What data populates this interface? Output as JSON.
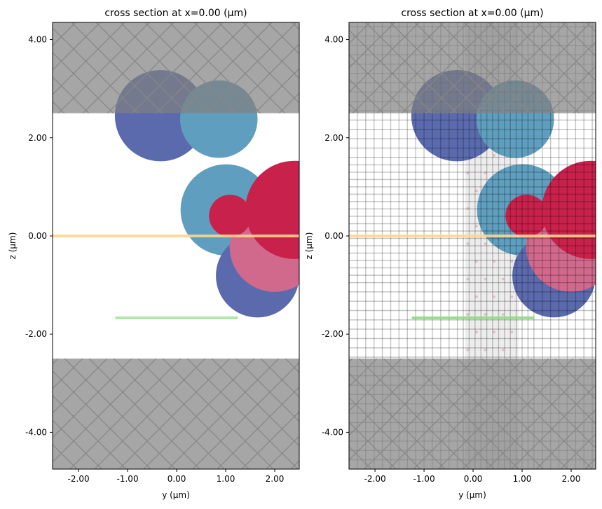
{
  "chart_data": [
    {
      "type": "structure-cross-section",
      "title": "cross section at x=0.00 (μm)",
      "xlabel": "y (μm)",
      "ylabel": "z (μm)",
      "xlim": [
        -2.53,
        2.5
      ],
      "ylim": [
        -4.75,
        4.35
      ],
      "xticks": [
        -2,
        -1,
        0,
        1,
        2
      ],
      "xtick_labels": [
        "-2.00",
        "-1.00",
        "0.00",
        "1.00",
        "2.00"
      ],
      "yticks": [
        4,
        2,
        0,
        -2,
        -4
      ],
      "ytick_labels": [
        "4.00",
        "2.00",
        "0.00",
        "-2.00",
        "-4.00"
      ],
      "show_grid_mesh": false,
      "slabs": [
        {
          "name": "top-cladding",
          "z_min": 2.5,
          "z_max": 4.35,
          "color": "#a6a6a6",
          "hatch": "x"
        },
        {
          "name": "bottom-substrate",
          "z_min": -4.75,
          "z_max": -2.5,
          "color": "#a6a6a6",
          "hatch": "x"
        }
      ],
      "circles": [
        {
          "y": -0.33,
          "z": 2.45,
          "r": 0.93,
          "color": "#5a6aad"
        },
        {
          "y": 0.86,
          "z": 2.38,
          "r": 0.79,
          "color": "#5f9ebe"
        },
        {
          "y": 1.01,
          "z": 0.53,
          "r": 0.93,
          "color": "#5f9ebe"
        },
        {
          "y": 1.65,
          "z": -0.81,
          "r": 0.85,
          "color": "#5a6aad"
        },
        {
          "y": 2.0,
          "z": -0.22,
          "r": 0.92,
          "color": "#d1698d"
        },
        {
          "y": 2.4,
          "z": 0.53,
          "r": 1.0,
          "color": "#c8214b"
        },
        {
          "y": 1.09,
          "z": 0.41,
          "r": 0.43,
          "color": "#c8214b"
        }
      ],
      "lines": [
        {
          "name": "source",
          "z": 0,
          "y_min": -2.53,
          "y_max": 2.5,
          "color": "#ffd58a"
        },
        {
          "name": "monitor",
          "z": -1.67,
          "y_min": -1.25,
          "y_max": 1.25,
          "color": "#a8e6a0"
        }
      ]
    },
    {
      "type": "structure-cross-section",
      "title": "cross section at x=0.00 (μm)",
      "xlabel": "y (μm)",
      "ylabel": "z (μm)",
      "xlim": [
        -2.53,
        2.5
      ],
      "ylim": [
        -4.75,
        4.35
      ],
      "xticks": [
        -2,
        -1,
        0,
        1,
        2
      ],
      "xtick_labels": [
        "-2.00",
        "-1.00",
        "0.00",
        "1.00",
        "2.00"
      ],
      "yticks": [
        4,
        2,
        0,
        -2,
        -4
      ],
      "ytick_labels": [
        "4.00",
        "2.00",
        "0.00",
        "-2.00",
        "-4.00"
      ],
      "show_grid_mesh": true,
      "refinement_region": {
        "y_min": -0.16,
        "y_max": 0.93,
        "z_min": -2.5,
        "z_max": 2.0,
        "color": "#ededed",
        "dot_color": "#d9a5b0"
      },
      "slabs": [
        {
          "name": "top-cladding",
          "z_min": 2.5,
          "z_max": 4.35,
          "color": "#a6a6a6",
          "hatch": "x"
        },
        {
          "name": "bottom-substrate",
          "z_min": -4.75,
          "z_max": -2.5,
          "color": "#a6a6a6",
          "hatch": "x"
        }
      ],
      "circles": [
        {
          "y": -0.33,
          "z": 2.45,
          "r": 0.93,
          "color": "#5a6aad"
        },
        {
          "y": 0.86,
          "z": 2.38,
          "r": 0.79,
          "color": "#5f9ebe"
        },
        {
          "y": 1.01,
          "z": 0.53,
          "r": 0.93,
          "color": "#5f9ebe"
        },
        {
          "y": 1.65,
          "z": -0.81,
          "r": 0.85,
          "color": "#5a6aad"
        },
        {
          "y": 2.0,
          "z": -0.22,
          "r": 0.92,
          "color": "#d1698d"
        },
        {
          "y": 2.4,
          "z": 0.53,
          "r": 1.0,
          "color": "#c8214b"
        },
        {
          "y": 1.09,
          "z": 0.41,
          "r": 0.43,
          "color": "#c8214b"
        }
      ],
      "lines": [
        {
          "name": "source",
          "z": 0,
          "y_min": -2.53,
          "y_max": 2.5,
          "color": "#ffd58a"
        },
        {
          "name": "monitor",
          "z": -1.67,
          "y_min": -1.25,
          "y_max": 1.25,
          "color": "#8fdc84"
        }
      ]
    }
  ]
}
